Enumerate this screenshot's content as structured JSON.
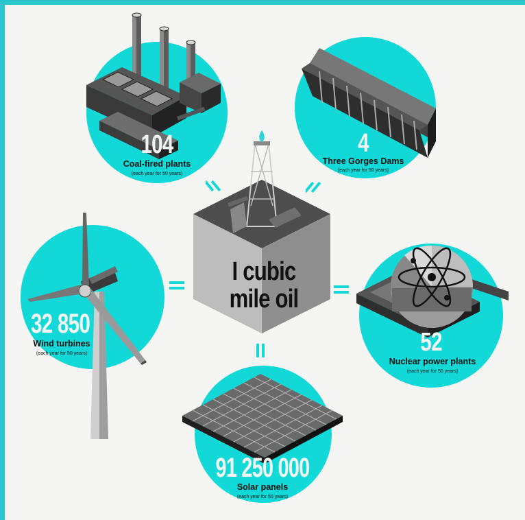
{
  "center": {
    "line1": "I cubic",
    "line2": "mile oil"
  },
  "items": [
    {
      "key": "coal",
      "value": "104",
      "label": "Coal-fired plants",
      "note": "(each year for 50 years)"
    },
    {
      "key": "dams",
      "value": "4",
      "label": "Three Gorges Dams",
      "note": "(each year for 50 years)"
    },
    {
      "key": "wind",
      "value": "32 850",
      "label": "Wind turbines",
      "note": "(each year for 50 years)"
    },
    {
      "key": "nuclear",
      "value": "52",
      "label": "Nuclear power plants",
      "note": "(each year for 50 years)"
    },
    {
      "key": "solar",
      "value": "91 250 000",
      "label": "Solar panels",
      "note": "(each year for 50 years)"
    }
  ],
  "colors": {
    "accent": "#12d8d8",
    "frame": "#29c6cc",
    "background": "#f5f5f3",
    "number": "#f2f6f2"
  }
}
